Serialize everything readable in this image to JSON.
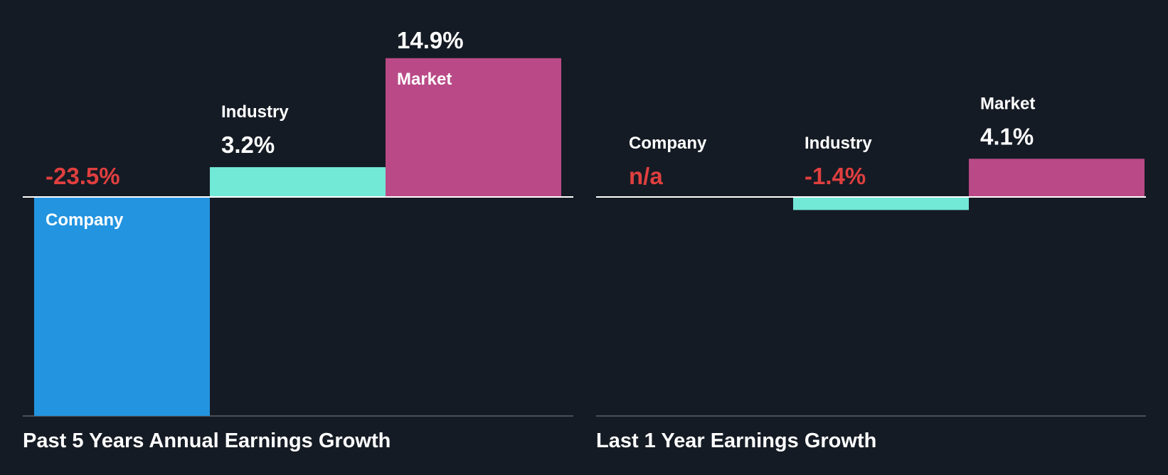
{
  "colors": {
    "background": "#151b24",
    "company": "#2394e0",
    "industry": "#72e8d6",
    "market": "#b94a87",
    "negative_text": "#e03f3f",
    "positive_text": "#ffffff",
    "axis": "#ffffff",
    "baseline": "#4a4f57"
  },
  "chart_data": [
    {
      "type": "bar",
      "title": "Past 5 Years Annual Earnings Growth",
      "categories": [
        "Company",
        "Industry",
        "Market"
      ],
      "values": [
        -23.5,
        3.2,
        14.9
      ],
      "value_labels": [
        "-23.5%",
        "3.2%",
        "14.9%"
      ],
      "unit": "%",
      "ylim": [
        -23.5,
        14.9
      ]
    },
    {
      "type": "bar",
      "title": "Last 1 Year Earnings Growth",
      "categories": [
        "Company",
        "Industry",
        "Market"
      ],
      "values": [
        null,
        -1.4,
        4.1
      ],
      "value_labels": [
        "n/a",
        "-1.4%",
        "4.1%"
      ],
      "unit": "%",
      "ylim": [
        -23.5,
        14.9
      ]
    }
  ]
}
